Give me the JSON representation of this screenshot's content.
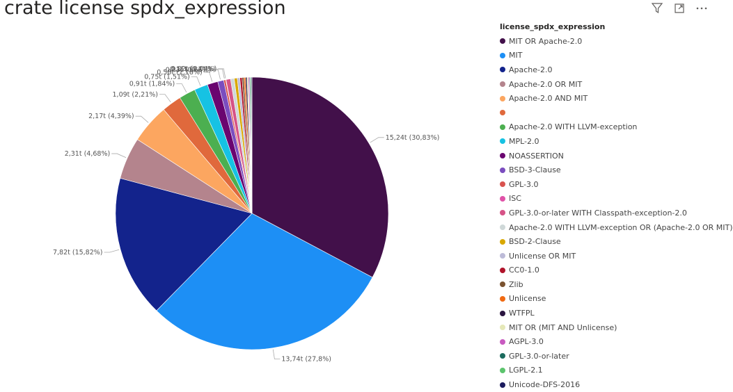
{
  "toolbar": {
    "icons": [
      "filter-icon",
      "focus-mode-icon",
      "more-options-icon"
    ]
  },
  "chart_data": {
    "type": "pie",
    "title": "crate license spdx_expression",
    "legend_title": "license_spdx_expression",
    "legend_placement": "right",
    "slices": [
      {
        "name": "MIT OR Apache-2.0",
        "value": 15.24,
        "percent": 30.83,
        "label": "15,24t (30,83%)",
        "color": "#42104a"
      },
      {
        "name": "MIT",
        "value": 13.74,
        "percent": 27.8,
        "label": "13,74t (27,8%)",
        "color": "#1d8ff5"
      },
      {
        "name": "Apache-2.0",
        "value": 7.82,
        "percent": 15.82,
        "label": "7,82t (15,82%)",
        "color": "#13238c"
      },
      {
        "name": "Apache-2.0 OR MIT",
        "value": 2.31,
        "percent": 4.68,
        "label": "2,31t (4,68%)",
        "color": "#b4848d"
      },
      {
        "name": "Apache-2.0 AND MIT",
        "value": 2.17,
        "percent": 4.39,
        "label": "2,17t (4,39%)",
        "color": "#fca660"
      },
      {
        "name": "",
        "value": 1.09,
        "percent": 2.21,
        "label": "1,09t (2,21%)",
        "color": "#e0693c"
      },
      {
        "name": "Apache-2.0 WITH LLVM-exception",
        "value": 0.91,
        "percent": 1.84,
        "label": "0,91t (1,84%)",
        "color": "#4caf50"
      },
      {
        "name": "MPL-2.0",
        "value": 0.75,
        "percent": 1.51,
        "label": "0,75t (1,51%)",
        "color": "#16c2e3"
      },
      {
        "name": "NOASSERTION",
        "value": 0.58,
        "percent": 1.18,
        "label": "0,58t (1,18%)",
        "color": "#6a0570"
      },
      {
        "name": "BSD-3-Clause",
        "value": 0.33,
        "percent": 0.66,
        "label": "0,33t (0,66%)",
        "color": "#7b4dbf"
      },
      {
        "name": "GPL-3.0",
        "value": 0.11,
        "percent": 0.21,
        "label": "0,11t (0,21%)",
        "color": "#d9534f"
      },
      {
        "name": "ISC",
        "value": 0.02,
        "percent": 0.04,
        "label": "0,02t (0,04%)",
        "color": "#e052a8"
      },
      {
        "name": "GPL-3.0-or-later WITH Classpath-exception-2.0",
        "value": 0.25,
        "color": "#d65387"
      },
      {
        "name": "Apache-2.0 WITH LLVM-exception OR (Apache-2.0 OR MIT)",
        "value": 0.2,
        "color": "#cfd8d8"
      },
      {
        "name": "BSD-2-Clause",
        "value": 0.17,
        "color": "#d9a800"
      },
      {
        "name": "Unlicense OR MIT",
        "value": 0.14,
        "color": "#bdbbd8"
      },
      {
        "name": "CC0-1.0",
        "value": 0.12,
        "color": "#b0142b"
      },
      {
        "name": "Zlib",
        "value": 0.1,
        "color": "#7a5230"
      },
      {
        "name": "Unlicense",
        "value": 0.09,
        "color": "#f06a12"
      },
      {
        "name": "WTFPL",
        "value": 0.08,
        "color": "#2a1540"
      },
      {
        "name": "MIT OR (MIT AND Unlicense)",
        "value": 0.07,
        "color": "#e5e8b8"
      },
      {
        "name": "AGPL-3.0",
        "value": 0.06,
        "color": "#c85ac0"
      },
      {
        "name": "GPL-3.0-or-later",
        "value": 0.05,
        "color": "#1b6b5e"
      },
      {
        "name": "LGPL-2.1",
        "value": 0.05,
        "color": "#5cc46d"
      },
      {
        "name": "Unicode-DFS-2016",
        "value": 0.04,
        "color": "#1b1b5e"
      }
    ]
  }
}
